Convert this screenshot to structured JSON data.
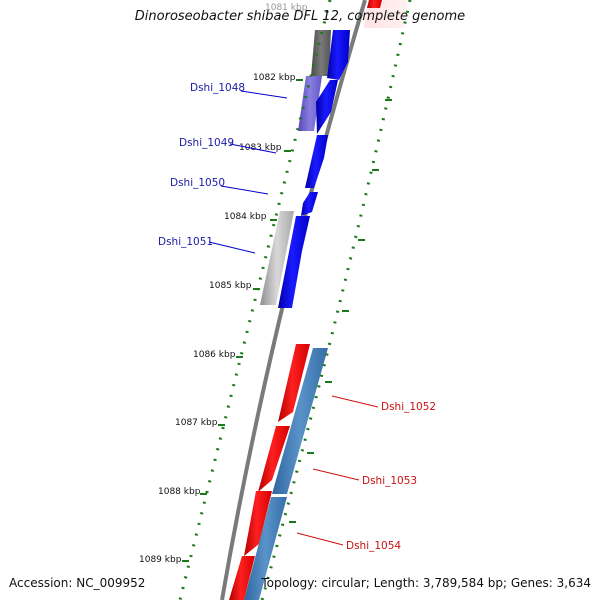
{
  "title": "Dinoroseobacter shibae DFL 12, complete genome",
  "accession_text": "Accession: NC_009952",
  "topology_text": "Topology: circular; Length: 3,789,584 bp; Genes: 3,634",
  "ruler_labels": [
    "1081 kbp",
    "1082 kbp",
    "1083 kbp",
    "1084 kbp",
    "1085 kbp",
    "1086 kbp",
    "1087 kbp",
    "1088 kbp",
    "1089 kbp"
  ],
  "gene_labels": [
    "Dshi_1048",
    "Dshi_1049",
    "Dshi_1050",
    "Dshi_1051",
    "Dshi_1052",
    "Dshi_1053",
    "Dshi_1054"
  ],
  "colors": {
    "forward_cds": "#0000ee",
    "reverse_cds": "#ee0000",
    "forward_label": "#1a1aa6",
    "reverse_label": "#cc1111",
    "backbone": "#777777",
    "ruler_ticks": "#1a7a1a",
    "light_blue_track": "#3a78b0",
    "purple_block": "#6a5acd",
    "gray_block": "#b8b8b8",
    "dark_gray_block": "#666666"
  }
}
